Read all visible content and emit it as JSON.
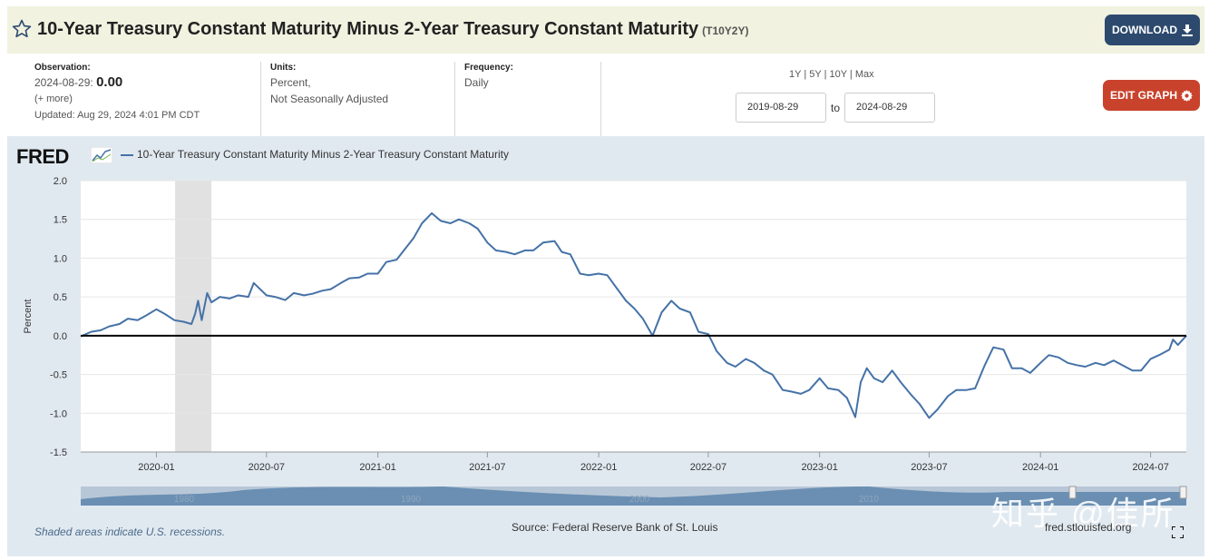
{
  "header": {
    "title": "10-Year Treasury Constant Maturity Minus 2-Year Treasury Constant Maturity",
    "series_id": "(T10Y2Y)",
    "download_label": "DOWNLOAD"
  },
  "observation": {
    "label": "Observation:",
    "date": "2024-08-29:",
    "value": "0.00",
    "more": "(+ more)",
    "updated": "Updated: Aug 29, 2024 4:01 PM CDT"
  },
  "units": {
    "label": "Units:",
    "line1": "Percent,",
    "line2": "Not Seasonally Adjusted"
  },
  "frequency": {
    "label": "Frequency:",
    "value": "Daily"
  },
  "range": {
    "links": [
      "1Y",
      "5Y",
      "10Y",
      "Max"
    ],
    "start": "2019-08-29",
    "to": "to",
    "end": "2024-08-29"
  },
  "edit_label": "EDIT GRAPH",
  "chart_header": {
    "logo": "FRED",
    "legend": "10-Year Treasury Constant Maturity Minus 2-Year Treasury Constant Maturity"
  },
  "footer": {
    "recession_note": "Shaded areas indicate U.S. recessions.",
    "source": "Source: Federal Reserve Bank of St. Louis",
    "site": "fred.stlouisfed.org"
  },
  "watermark": "知乎 @佳所",
  "navigator_labels": [
    "1980",
    "1990",
    "2000",
    "2010"
  ],
  "chart_data": {
    "type": "line",
    "ylabel": "Percent",
    "ylim": [
      -1.5,
      2.0
    ],
    "yticks": [
      2.0,
      1.5,
      1.0,
      0.5,
      0.0,
      -0.5,
      -1.0,
      -1.5
    ],
    "ytick_labels": [
      "2.0",
      "1.5",
      "1.0",
      "0.5",
      "0.0",
      "-0.5",
      "-1.0",
      "-1.5"
    ],
    "xlim": [
      "2019-08-29",
      "2024-08-29"
    ],
    "xticks": [
      "2020-01",
      "2020-07",
      "2021-01",
      "2021-07",
      "2022-01",
      "2022-07",
      "2023-01",
      "2023-07",
      "2024-01",
      "2024-07"
    ],
    "zero_line": true,
    "recession": {
      "start": "2020-02",
      "end": "2020-04"
    },
    "series": [
      {
        "name": "10-Year Treasury Constant Maturity Minus 2-Year Treasury Constant Maturity",
        "color": "#4572a7",
        "points": [
          [
            "2019-08-29",
            -0.01
          ],
          [
            "2019-09-15",
            0.05
          ],
          [
            "2019-10-01",
            0.07
          ],
          [
            "2019-10-15",
            0.12
          ],
          [
            "2019-11-01",
            0.15
          ],
          [
            "2019-11-15",
            0.22
          ],
          [
            "2019-12-01",
            0.2
          ],
          [
            "2019-12-15",
            0.26
          ],
          [
            "2020-01-01",
            0.34
          ],
          [
            "2020-01-15",
            0.28
          ],
          [
            "2020-01-31",
            0.2
          ],
          [
            "2020-02-15",
            0.18
          ],
          [
            "2020-02-28",
            0.15
          ],
          [
            "2020-03-05",
            0.28
          ],
          [
            "2020-03-10",
            0.45
          ],
          [
            "2020-03-16",
            0.2
          ],
          [
            "2020-03-25",
            0.55
          ],
          [
            "2020-04-01",
            0.43
          ],
          [
            "2020-04-15",
            0.5
          ],
          [
            "2020-05-01",
            0.48
          ],
          [
            "2020-05-15",
            0.52
          ],
          [
            "2020-06-01",
            0.5
          ],
          [
            "2020-06-10",
            0.68
          ],
          [
            "2020-07-01",
            0.52
          ],
          [
            "2020-07-15",
            0.5
          ],
          [
            "2020-08-01",
            0.46
          ],
          [
            "2020-08-15",
            0.55
          ],
          [
            "2020-09-01",
            0.52
          ],
          [
            "2020-09-15",
            0.54
          ],
          [
            "2020-10-01",
            0.58
          ],
          [
            "2020-10-15",
            0.6
          ],
          [
            "2020-11-01",
            0.68
          ],
          [
            "2020-11-15",
            0.74
          ],
          [
            "2020-12-01",
            0.75
          ],
          [
            "2020-12-15",
            0.8
          ],
          [
            "2021-01-01",
            0.8
          ],
          [
            "2021-01-15",
            0.95
          ],
          [
            "2021-02-01",
            0.98
          ],
          [
            "2021-02-15",
            1.12
          ],
          [
            "2021-03-01",
            1.26
          ],
          [
            "2021-03-15",
            1.45
          ],
          [
            "2021-03-31",
            1.58
          ],
          [
            "2021-04-15",
            1.48
          ],
          [
            "2021-05-01",
            1.45
          ],
          [
            "2021-05-15",
            1.5
          ],
          [
            "2021-06-01",
            1.45
          ],
          [
            "2021-06-15",
            1.38
          ],
          [
            "2021-07-01",
            1.2
          ],
          [
            "2021-07-15",
            1.1
          ],
          [
            "2021-08-01",
            1.08
          ],
          [
            "2021-08-15",
            1.05
          ],
          [
            "2021-09-01",
            1.1
          ],
          [
            "2021-09-15",
            1.1
          ],
          [
            "2021-10-01",
            1.2
          ],
          [
            "2021-10-20",
            1.22
          ],
          [
            "2021-11-01",
            1.08
          ],
          [
            "2021-11-15",
            1.05
          ],
          [
            "2021-12-01",
            0.8
          ],
          [
            "2021-12-15",
            0.78
          ],
          [
            "2022-01-01",
            0.8
          ],
          [
            "2022-01-15",
            0.78
          ],
          [
            "2022-02-01",
            0.6
          ],
          [
            "2022-02-15",
            0.45
          ],
          [
            "2022-03-01",
            0.35
          ],
          [
            "2022-03-15",
            0.22
          ],
          [
            "2022-03-31",
            0.0
          ],
          [
            "2022-04-15",
            0.3
          ],
          [
            "2022-05-01",
            0.45
          ],
          [
            "2022-05-15",
            0.35
          ],
          [
            "2022-06-01",
            0.3
          ],
          [
            "2022-06-15",
            0.05
          ],
          [
            "2022-07-01",
            0.02
          ],
          [
            "2022-07-15",
            -0.2
          ],
          [
            "2022-08-01",
            -0.35
          ],
          [
            "2022-08-15",
            -0.4
          ],
          [
            "2022-09-01",
            -0.3
          ],
          [
            "2022-09-15",
            -0.35
          ],
          [
            "2022-10-01",
            -0.45
          ],
          [
            "2022-10-15",
            -0.5
          ],
          [
            "2022-11-01",
            -0.7
          ],
          [
            "2022-11-15",
            -0.72
          ],
          [
            "2022-12-01",
            -0.75
          ],
          [
            "2022-12-15",
            -0.7
          ],
          [
            "2023-01-01",
            -0.55
          ],
          [
            "2023-01-15",
            -0.68
          ],
          [
            "2023-02-01",
            -0.7
          ],
          [
            "2023-02-15",
            -0.8
          ],
          [
            "2023-03-01",
            -1.05
          ],
          [
            "2023-03-10",
            -0.6
          ],
          [
            "2023-03-20",
            -0.42
          ],
          [
            "2023-04-01",
            -0.55
          ],
          [
            "2023-04-15",
            -0.6
          ],
          [
            "2023-05-01",
            -0.45
          ],
          [
            "2023-05-15",
            -0.6
          ],
          [
            "2023-06-01",
            -0.76
          ],
          [
            "2023-06-15",
            -0.88
          ],
          [
            "2023-07-01",
            -1.06
          ],
          [
            "2023-07-15",
            -0.95
          ],
          [
            "2023-08-01",
            -0.78
          ],
          [
            "2023-08-15",
            -0.7
          ],
          [
            "2023-09-01",
            -0.7
          ],
          [
            "2023-09-15",
            -0.68
          ],
          [
            "2023-10-01",
            -0.38
          ],
          [
            "2023-10-15",
            -0.15
          ],
          [
            "2023-11-01",
            -0.18
          ],
          [
            "2023-11-15",
            -0.42
          ],
          [
            "2023-12-01",
            -0.42
          ],
          [
            "2023-12-15",
            -0.48
          ],
          [
            "2024-01-01",
            -0.35
          ],
          [
            "2024-01-15",
            -0.25
          ],
          [
            "2024-01-31",
            -0.28
          ],
          [
            "2024-02-15",
            -0.35
          ],
          [
            "2024-03-01",
            -0.38
          ],
          [
            "2024-03-15",
            -0.4
          ],
          [
            "2024-04-01",
            -0.35
          ],
          [
            "2024-04-15",
            -0.38
          ],
          [
            "2024-05-01",
            -0.32
          ],
          [
            "2024-05-15",
            -0.38
          ],
          [
            "2024-06-01",
            -0.45
          ],
          [
            "2024-06-15",
            -0.45
          ],
          [
            "2024-07-01",
            -0.3
          ],
          [
            "2024-07-15",
            -0.25
          ],
          [
            "2024-08-01",
            -0.18
          ],
          [
            "2024-08-07",
            -0.05
          ],
          [
            "2024-08-15",
            -0.12
          ],
          [
            "2024-08-29",
            0.0
          ]
        ]
      }
    ]
  }
}
